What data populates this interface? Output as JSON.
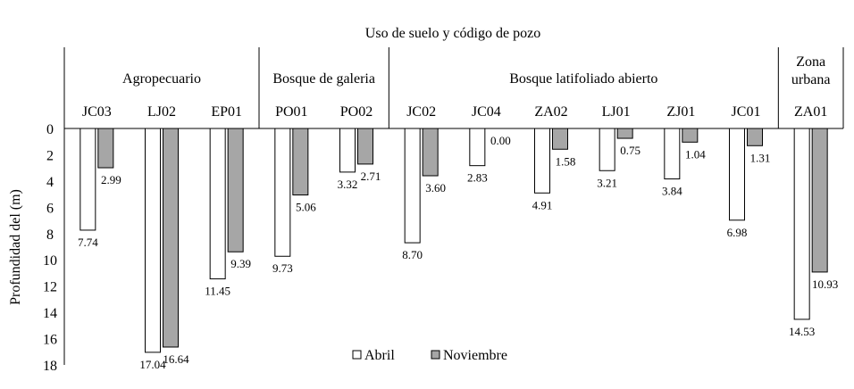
{
  "chart_data": {
    "type": "bar",
    "title": "Uso de suelo y código de pozo",
    "ylabel": "Profundidad del  (m)",
    "xlabel": "",
    "ylim": [
      0,
      18
    ],
    "y_inverted": true,
    "yticks": [
      "0",
      "2",
      "4",
      "6",
      "8",
      "10",
      "12",
      "14",
      "16",
      "18"
    ],
    "groups": [
      {
        "label": "Agropecuario",
        "count": 3
      },
      {
        "label": "Bosque de galeria",
        "count": 2
      },
      {
        "label": "Bosque latifoliado abierto",
        "count": 6
      },
      {
        "label": "Zona urbana",
        "label_lines": [
          "Zona",
          "urbana"
        ],
        "count": 1
      }
    ],
    "categories": [
      "JC03",
      "LJ02",
      "EP01",
      "PO01",
      "PO02",
      "JC02",
      "JC04",
      "ZA02",
      "LJ01",
      "ZJ01",
      "JC01",
      "ZA01"
    ],
    "series": [
      {
        "name": "Abril",
        "color": "#ffffff",
        "values": [
          7.74,
          17.04,
          11.45,
          9.73,
          3.32,
          8.7,
          2.83,
          4.91,
          3.21,
          3.84,
          6.98,
          14.53
        ],
        "labels": [
          "7.74",
          "17.04",
          "11.45",
          "9.73",
          "3.32",
          "8.70",
          "2.83",
          "4.91",
          "3.21",
          "3.84",
          "6.98",
          "14.53"
        ]
      },
      {
        "name": "Noviembre",
        "color": "#a6a6a6",
        "values": [
          2.99,
          16.64,
          9.39,
          5.06,
          2.71,
          3.6,
          0.0,
          1.58,
          0.75,
          1.04,
          1.31,
          10.93
        ],
        "labels": [
          "2.99",
          "16.64",
          "9.39",
          "5.06",
          "2.71",
          "3.60",
          "0.00",
          "1.58",
          "0.75",
          "1.04",
          "1.31",
          "10.93"
        ]
      }
    ],
    "legend": "bottom-center",
    "grid": false
  }
}
